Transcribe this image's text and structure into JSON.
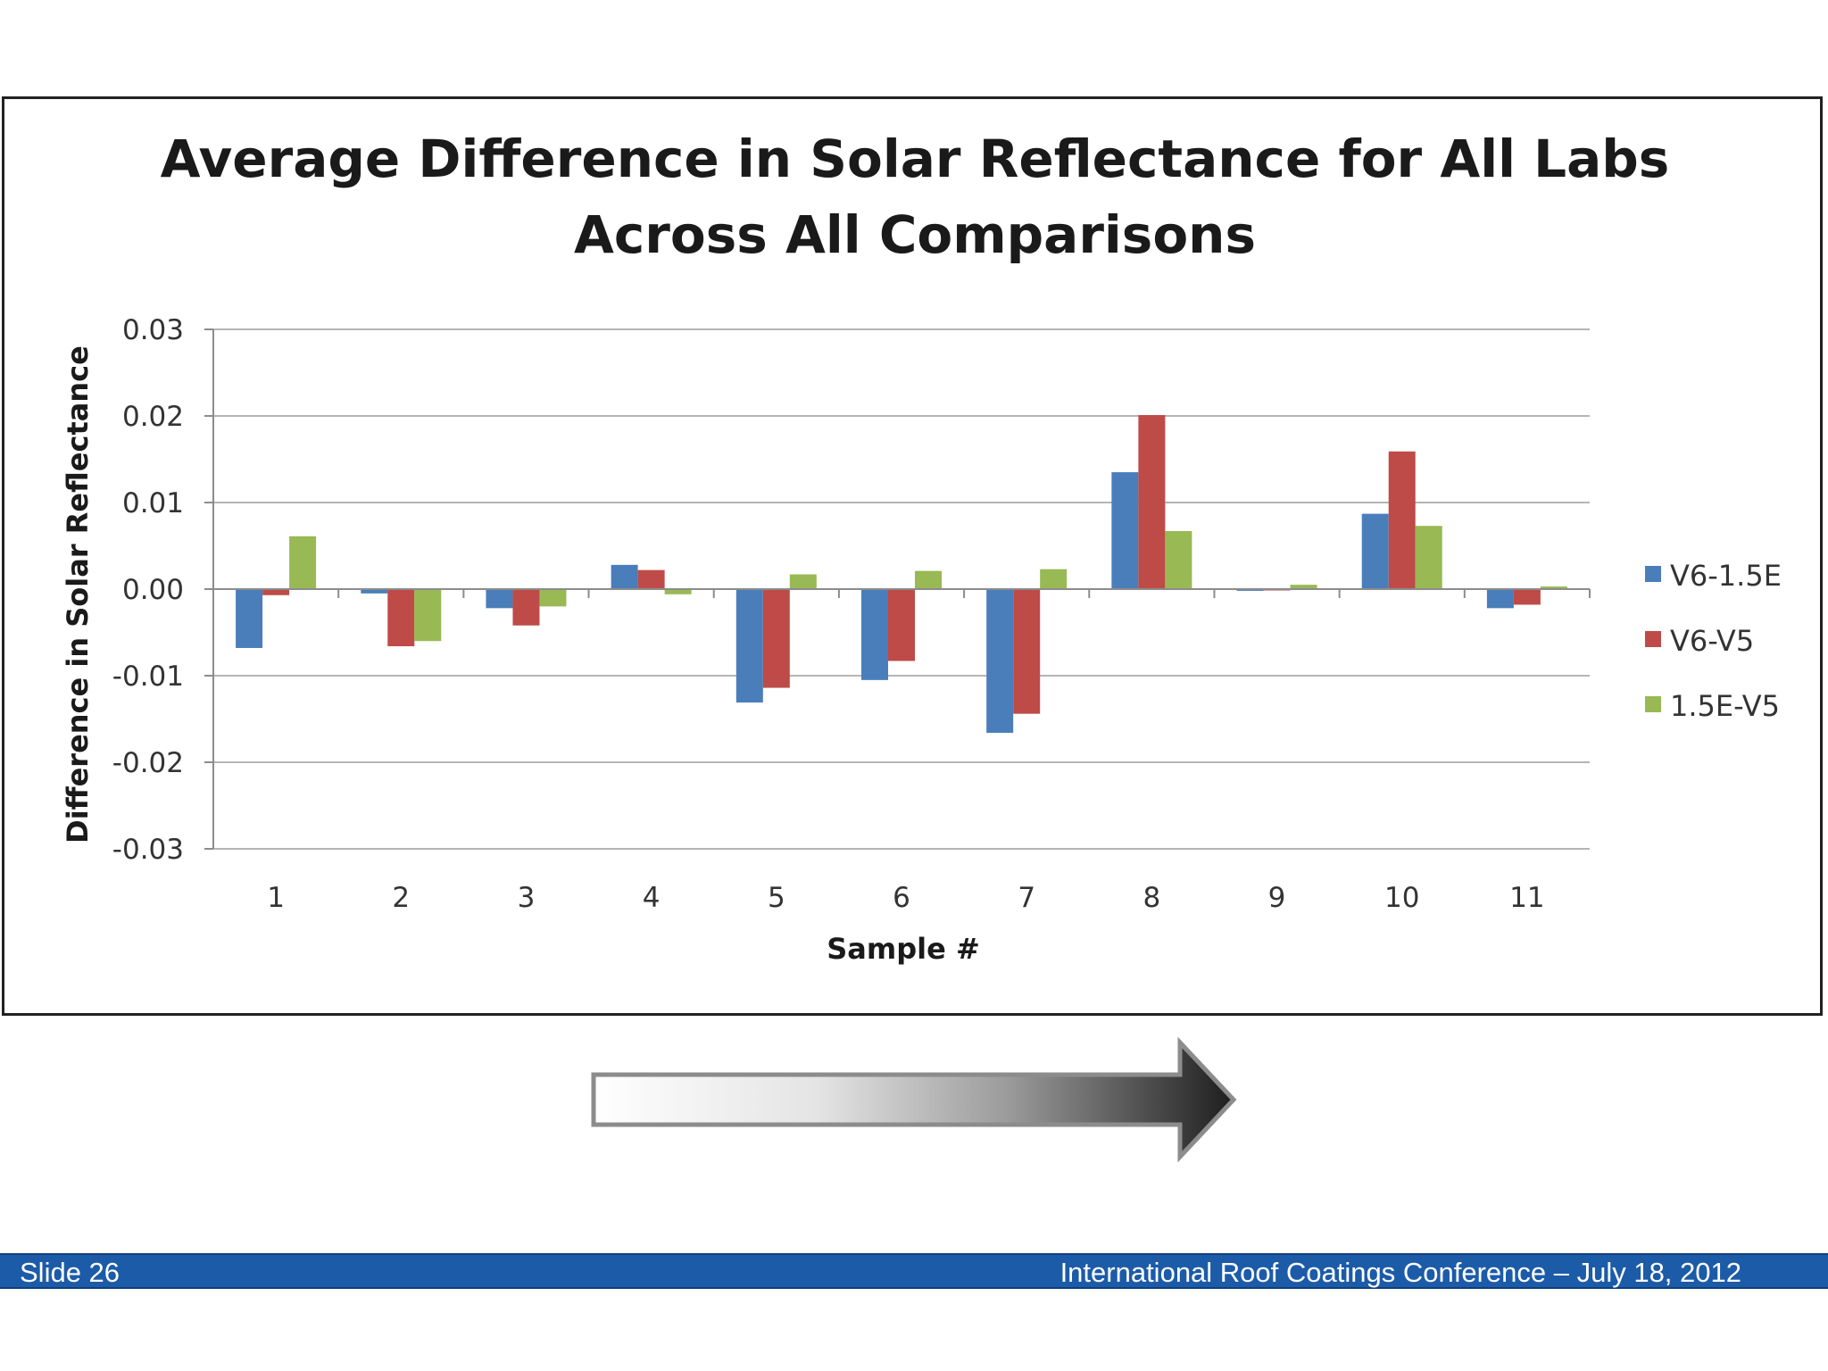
{
  "slide": {
    "number_label": "Slide 26",
    "conference_label": "International Roof Coatings Conference – July 18, 2012"
  },
  "colors": {
    "footer_bar": "#1c5ba8",
    "series": [
      "#4a7ebb",
      "#be4b48",
      "#98b954"
    ],
    "arrow_start": "#ffffff",
    "arrow_end": "#1e1e1e"
  },
  "chart_data": {
    "type": "bar",
    "title_lines": [
      "Average Difference in Solar Reflectance for All Labs",
      "Across All Comparisons"
    ],
    "xlabel": "Sample #",
    "ylabel": "Difference in Solar Reflectance",
    "ylim": [
      -0.03,
      0.03
    ],
    "yticks": [
      "0.03",
      "0.02",
      "0.01",
      "0.00",
      "-0.01",
      "-0.02",
      "-0.03"
    ],
    "ytick_values": [
      0.03,
      0.02,
      0.01,
      0.0,
      -0.01,
      -0.02,
      -0.03
    ],
    "grid": "horizontal",
    "legend_position": "right",
    "categories": [
      "1",
      "2",
      "3",
      "4",
      "5",
      "6",
      "7",
      "8",
      "9",
      "10",
      "11"
    ],
    "series": [
      {
        "name": "V6-1.5E",
        "values": [
          -0.0068,
          -0.0005,
          -0.0022,
          0.0028,
          -0.0131,
          -0.0105,
          -0.0166,
          0.0135,
          -0.0002,
          0.0087,
          -0.0022
        ]
      },
      {
        "name": "V6-V5",
        "values": [
          -0.0007,
          -0.0066,
          -0.0042,
          0.0022,
          -0.0114,
          -0.0083,
          -0.0144,
          0.0201,
          0.0,
          0.0159,
          -0.0018
        ]
      },
      {
        "name": "1.5E-V5",
        "values": [
          0.0061,
          -0.006,
          -0.002,
          -0.0006,
          0.0017,
          0.0021,
          0.0023,
          0.0067,
          0.0005,
          0.0073,
          0.0003
        ]
      }
    ]
  }
}
